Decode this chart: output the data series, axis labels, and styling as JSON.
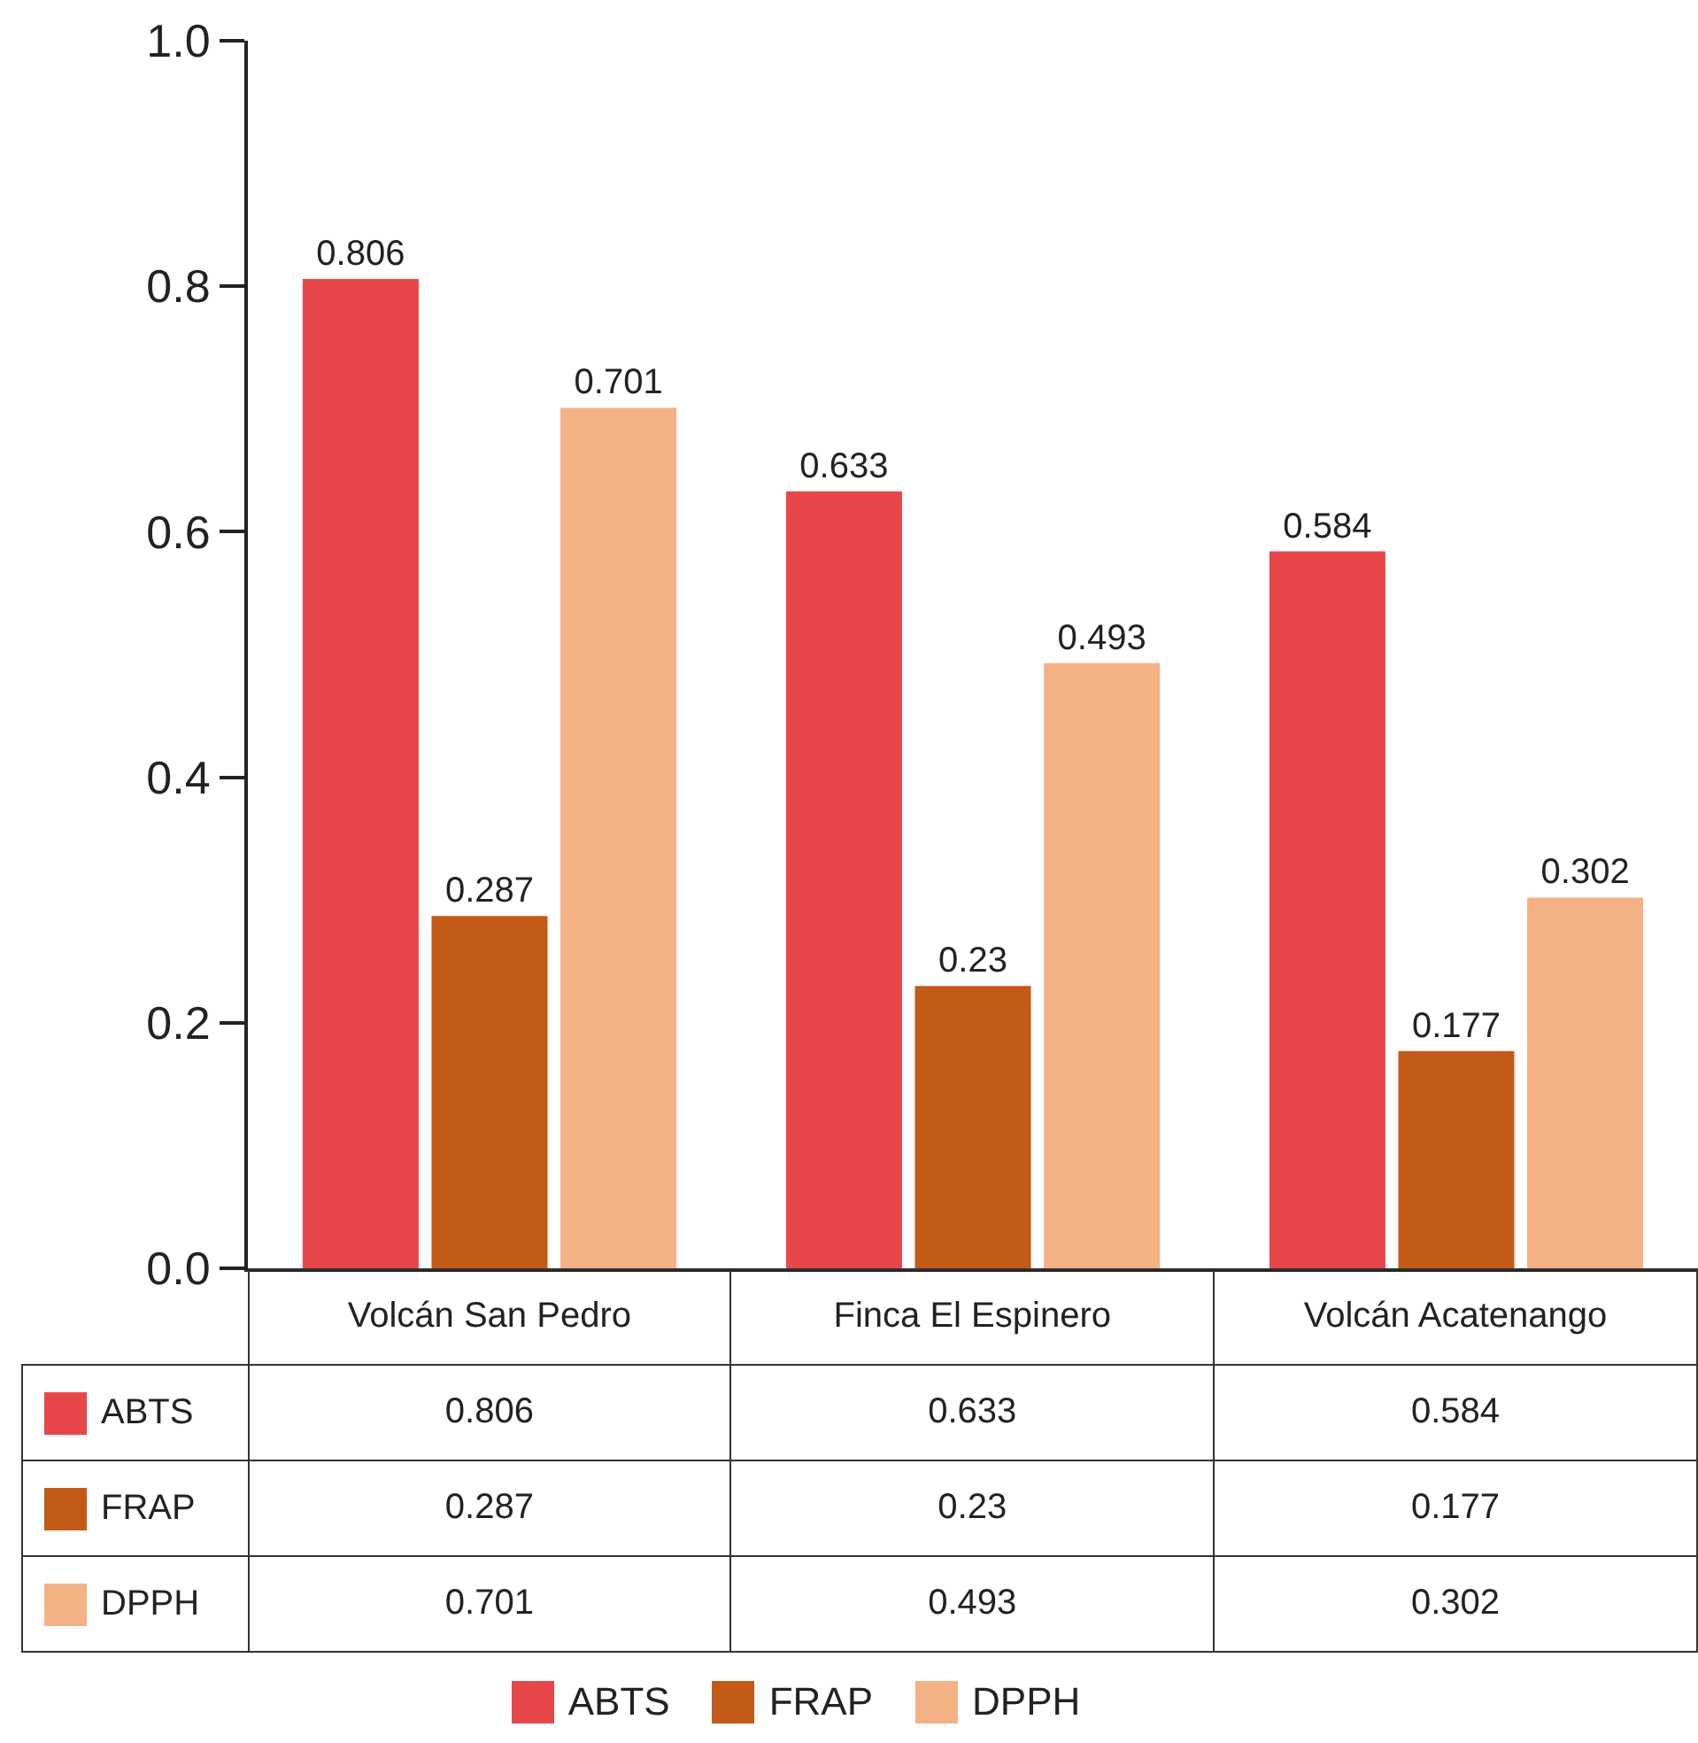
{
  "chart_data": {
    "type": "bar",
    "categories": [
      "Volcán San Pedro",
      "Finca El Espinero",
      "Volcán Acatenango"
    ],
    "series": [
      {
        "name": "ABTS",
        "color": "#e8474a",
        "values": [
          0.806,
          0.633,
          0.584
        ]
      },
      {
        "name": "FRAP",
        "color": "#c45a18",
        "values": [
          0.287,
          0.23,
          0.177
        ]
      },
      {
        "name": "DPPH",
        "color": "#f4b186",
        "values": [
          0.701,
          0.493,
          0.302
        ]
      }
    ],
    "ylim": [
      0,
      1
    ],
    "yticks": [
      {
        "value": 0,
        "label": "0.0"
      },
      0.2,
      0.4,
      0.6,
      0.8,
      {
        "value": 1,
        "label": "1.0"
      }
    ],
    "annotations": [
      "0.806",
      "0.633",
      "0.584",
      "0.287",
      "0.23",
      "0.177",
      "0.701",
      "0.493",
      "0.302"
    ],
    "grid": false,
    "legend": "bottom",
    "data_labels": true,
    "tick_labels": "y"
  }
}
